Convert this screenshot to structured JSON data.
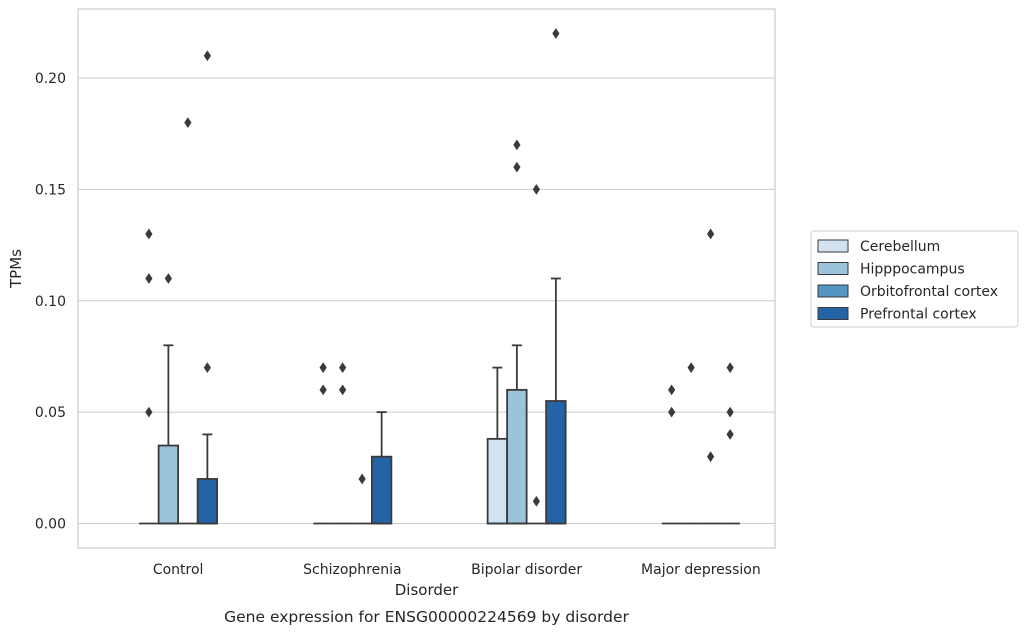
{
  "chart_data": {
    "type": "boxplot",
    "caption": "Gene expression for ENSG00000224569 by disorder",
    "xlabel": "Disorder",
    "ylabel": "TPMs",
    "ylim": [
      -0.011,
      0.231
    ],
    "yticks": [
      0.0,
      0.05,
      0.1,
      0.15,
      0.2
    ],
    "ytick_labels": [
      "0.00",
      "0.05",
      "0.10",
      "0.15",
      "0.20"
    ],
    "grid": "horizontal",
    "legend_position": "right",
    "categories": [
      "Control",
      "Schizophrenia",
      "Bipolar disorder",
      "Major depression"
    ],
    "colors": {
      "Cerebellum": "#d3e2f1",
      "Hipppocampus": "#9bc3db",
      "Orbitofrontal cortex": "#5396c4",
      "Prefrontal cortex": "#2463a5"
    },
    "series": [
      {
        "name": "Cerebellum",
        "boxes": [
          {
            "q1": 0,
            "q3": 0,
            "whisker_low": 0,
            "whisker_high": 0,
            "outliers": []
          },
          {
            "q1": 0,
            "q3": 0,
            "whisker_low": 0,
            "whisker_high": 0,
            "outliers": [
              0.06,
              0.07
            ]
          },
          {
            "q1": 0,
            "q3": 0.038,
            "whisker_low": 0,
            "whisker_high": 0.07,
            "outliers": []
          },
          {
            "q1": 0,
            "q3": 0,
            "whisker_low": 0,
            "whisker_high": 0,
            "outliers": [
              0.05,
              0.06
            ]
          }
        ]
      },
      {
        "name": "Hipppocampus",
        "boxes": [
          {
            "q1": 0,
            "q3": 0.035,
            "whisker_low": 0,
            "whisker_high": 0.08,
            "outliers": [
              0.11
            ]
          },
          {
            "q1": 0,
            "q3": 0,
            "whisker_low": 0,
            "whisker_high": 0,
            "outliers": [
              0.06,
              0.07
            ]
          },
          {
            "q1": 0,
            "q3": 0.06,
            "whisker_low": 0,
            "whisker_high": 0.08,
            "outliers": [
              0.16,
              0.17
            ]
          },
          {
            "q1": 0,
            "q3": 0,
            "whisker_low": 0,
            "whisker_high": 0,
            "outliers": [
              0.07
            ]
          }
        ]
      },
      {
        "name": "Orbitofrontal cortex",
        "boxes": [
          {
            "q1": 0,
            "q3": 0,
            "whisker_low": 0,
            "whisker_high": 0,
            "outliers": [
              0.18
            ]
          },
          {
            "q1": 0,
            "q3": 0,
            "whisker_low": 0,
            "whisker_high": 0,
            "outliers": [
              0.02
            ]
          },
          {
            "q1": 0,
            "q3": 0,
            "whisker_low": 0,
            "whisker_high": 0,
            "outliers": [
              0.01,
              0.15
            ]
          },
          {
            "q1": 0,
            "q3": 0,
            "whisker_low": 0,
            "whisker_high": 0,
            "outliers": [
              0.03,
              0.13
            ]
          }
        ]
      },
      {
        "name": "Prefrontal cortex",
        "boxes": [
          {
            "q1": 0,
            "q3": 0.02,
            "whisker_low": 0,
            "whisker_high": 0.04,
            "outliers": [
              0.07,
              0.21
            ]
          },
          {
            "q1": 0,
            "q3": 0.03,
            "whisker_low": 0,
            "whisker_high": 0.05,
            "outliers": []
          },
          {
            "q1": 0,
            "q3": 0.055,
            "whisker_low": 0,
            "whisker_high": 0.11,
            "outliers": [
              0.22
            ]
          },
          {
            "q1": 0,
            "q3": 0,
            "whisker_low": 0,
            "whisker_high": 0,
            "outliers": [
              0.04,
              0.05,
              0.07
            ]
          }
        ]
      }
    ],
    "extra_outliers": [
      {
        "series": "Cerebellum",
        "category": "Control",
        "values": [
          0.05,
          0.11,
          0.13
        ]
      }
    ]
  }
}
